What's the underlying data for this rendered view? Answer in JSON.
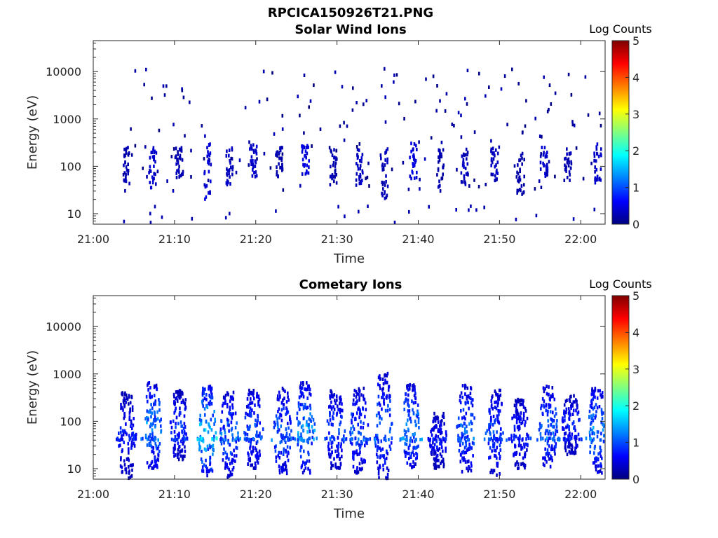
{
  "figure_title": "RPCICA150926T21.PNG",
  "chart_data": [
    {
      "type": "heatmap",
      "title": "Solar Wind Ions",
      "xlabel": "Time",
      "ylabel": "Energy (eV)",
      "x_range": [
        "21:00",
        "22:03"
      ],
      "x_ticks": [
        "21:00",
        "21:10",
        "21:20",
        "21:30",
        "21:40",
        "21:50",
        "22:00"
      ],
      "y_scale": "log",
      "y_range": [
        6,
        45000
      ],
      "y_ticks": [
        10,
        100,
        1000,
        10000
      ],
      "y_tick_labels": [
        "10",
        "100",
        "1000",
        "10000"
      ],
      "colorbar": {
        "title": "Log Counts",
        "range": [
          0,
          5
        ],
        "ticks": [
          "0",
          "1",
          "2",
          "3",
          "4",
          "5"
        ],
        "colormap": "jet"
      },
      "bursts": [
        {
          "time": 4.0,
          "e_low": 30,
          "e_high": 250,
          "intensity": 0.3
        },
        {
          "time": 7.2,
          "e_low": 35,
          "e_high": 300,
          "intensity": 0.45
        },
        {
          "time": 10.5,
          "e_low": 40,
          "e_high": 250,
          "intensity": 0.3
        },
        {
          "time": 14.0,
          "e_low": 20,
          "e_high": 300,
          "intensity": 0.5
        },
        {
          "time": 16.7,
          "e_low": 40,
          "e_high": 250,
          "intensity": 0.4
        },
        {
          "time": 19.6,
          "e_low": 60,
          "e_high": 300,
          "intensity": 0.45
        },
        {
          "time": 22.8,
          "e_low": 60,
          "e_high": 250,
          "intensity": 0.3
        },
        {
          "time": 26.0,
          "e_low": 60,
          "e_high": 300,
          "intensity": 0.55
        },
        {
          "time": 29.5,
          "e_low": 40,
          "e_high": 250,
          "intensity": 0.3
        },
        {
          "time": 32.7,
          "e_low": 40,
          "e_high": 300,
          "intensity": 0.4
        },
        {
          "time": 35.7,
          "e_low": 20,
          "e_high": 250,
          "intensity": 0.35
        },
        {
          "time": 39.3,
          "e_low": 50,
          "e_high": 320,
          "intensity": 0.55
        },
        {
          "time": 42.6,
          "e_low": 30,
          "e_high": 250,
          "intensity": 0.3
        },
        {
          "time": 45.6,
          "e_low": 40,
          "e_high": 250,
          "intensity": 0.35
        },
        {
          "time": 49.3,
          "e_low": 50,
          "e_high": 250,
          "intensity": 0.4
        },
        {
          "time": 52.5,
          "e_low": 20,
          "e_high": 200,
          "intensity": 0.25
        },
        {
          "time": 55.4,
          "e_low": 60,
          "e_high": 250,
          "intensity": 0.45
        },
        {
          "time": 58.3,
          "e_low": 50,
          "e_high": 250,
          "intensity": 0.3
        },
        {
          "time": 62.0,
          "e_low": 40,
          "e_high": 300,
          "intensity": 0.45
        }
      ],
      "scatter_band": [
        30,
        12000
      ]
    },
    {
      "type": "heatmap",
      "title": "Cometary Ions",
      "xlabel": "Time",
      "ylabel": "Energy (eV)",
      "x_range": [
        "21:00",
        "22:03"
      ],
      "x_ticks": [
        "21:00",
        "21:10",
        "21:20",
        "21:30",
        "21:40",
        "21:50",
        "22:00"
      ],
      "y_scale": "log",
      "y_range": [
        6,
        45000
      ],
      "y_ticks": [
        10,
        100,
        1000,
        10000
      ],
      "y_tick_labels": [
        "10",
        "100",
        "1000",
        "10000"
      ],
      "colorbar": {
        "title": "Log Counts",
        "range": [
          0,
          5
        ],
        "ticks": [
          "0",
          "1",
          "2",
          "3",
          "4",
          "5"
        ],
        "colormap": "jet"
      },
      "bursts": [
        {
          "time": 4.0,
          "e_low": 6,
          "e_high": 400,
          "intensity": 0.9
        },
        {
          "time": 7.2,
          "e_low": 10,
          "e_high": 650,
          "intensity": 1.6
        },
        {
          "time": 10.5,
          "e_low": 15,
          "e_high": 450,
          "intensity": 1.1
        },
        {
          "time": 13.9,
          "e_low": 7,
          "e_high": 550,
          "intensity": 2.1
        },
        {
          "time": 16.6,
          "e_low": 6,
          "e_high": 450,
          "intensity": 1.4
        },
        {
          "time": 19.6,
          "e_low": 10,
          "e_high": 450,
          "intensity": 1.3
        },
        {
          "time": 23.2,
          "e_low": 7,
          "e_high": 500,
          "intensity": 1.4
        },
        {
          "time": 26.0,
          "e_low": 8,
          "e_high": 650,
          "intensity": 1.7
        },
        {
          "time": 29.7,
          "e_low": 10,
          "e_high": 450,
          "intensity": 1.2
        },
        {
          "time": 32.6,
          "e_low": 8,
          "e_high": 500,
          "intensity": 1.3
        },
        {
          "time": 35.6,
          "e_low": 6,
          "e_high": 1100,
          "intensity": 1.4
        },
        {
          "time": 39.0,
          "e_low": 10,
          "e_high": 600,
          "intensity": 1.6
        },
        {
          "time": 42.4,
          "e_low": 10,
          "e_high": 150,
          "intensity": 0.9
        },
        {
          "time": 45.8,
          "e_low": 8,
          "e_high": 600,
          "intensity": 1.4
        },
        {
          "time": 49.4,
          "e_low": 7,
          "e_high": 450,
          "intensity": 1.2
        },
        {
          "time": 52.4,
          "e_low": 10,
          "e_high": 300,
          "intensity": 1.0
        },
        {
          "time": 55.9,
          "e_low": 10,
          "e_high": 550,
          "intensity": 1.4
        },
        {
          "time": 58.7,
          "e_low": 20,
          "e_high": 350,
          "intensity": 1.0
        },
        {
          "time": 61.9,
          "e_low": 8,
          "e_high": 500,
          "intensity": 1.6
        }
      ]
    }
  ]
}
